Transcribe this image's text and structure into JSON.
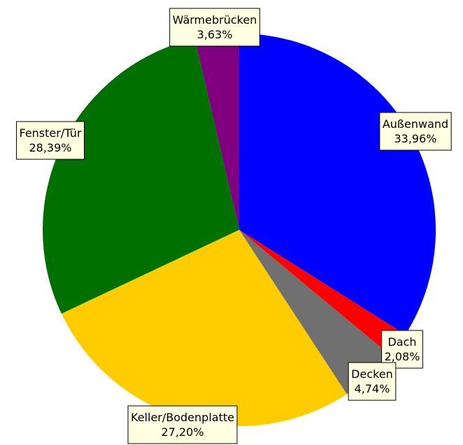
{
  "chart_data": {
    "type": "pie",
    "categories": [
      "Außenwand",
      "Dach",
      "Decken",
      "Keller/Bodenplatte",
      "Fenster/Tür",
      "Wärmebrücken"
    ],
    "values": [
      33.96,
      2.08,
      4.74,
      27.2,
      28.39,
      3.63
    ],
    "value_labels": [
      "33,96%",
      "2,08%",
      "4,74%",
      "27,20%",
      "28,39%",
      "3,63%"
    ],
    "colors": [
      "#0000ff",
      "#ff0000",
      "#707070",
      "#ffcc00",
      "#007000",
      "#800080"
    ]
  }
}
